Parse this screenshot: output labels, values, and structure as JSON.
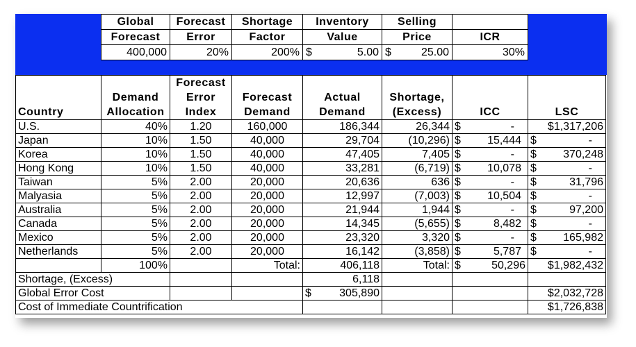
{
  "params": {
    "headers": [
      [
        "Global",
        "Forecast"
      ],
      [
        "Forecast",
        "Error"
      ],
      [
        "Shortage",
        "Factor"
      ],
      [
        "Inventory",
        "Value"
      ],
      [
        "Selling",
        "Price"
      ],
      [
        "",
        "ICR"
      ]
    ],
    "values": {
      "global_forecast": "400,000",
      "forecast_error": "20%",
      "shortage_factor": "200%",
      "inventory_value_sym": "$",
      "inventory_value": "5.00",
      "selling_price_sym": "$",
      "selling_price": "25.00",
      "icr": "30%"
    }
  },
  "columns": [
    [
      "",
      "",
      "Country"
    ],
    [
      "",
      "Demand",
      "Allocation"
    ],
    [
      "Forecast",
      "Error",
      "Index"
    ],
    [
      "",
      "Forecast",
      "Demand"
    ],
    [
      "",
      "Actual",
      "Demand"
    ],
    [
      "",
      "Shortage,",
      "(Excess)"
    ],
    [
      "",
      "",
      "ICC"
    ],
    [
      "",
      "",
      "LSC"
    ]
  ],
  "rows": [
    {
      "country": "U.S.",
      "alloc": "40%",
      "index": "1.20",
      "forecast": "160,000",
      "actual": "186,344",
      "shortage": "26,344",
      "icc": "-",
      "lsc": "$1,317,206",
      "lsc_split": false
    },
    {
      "country": "Japan",
      "alloc": "10%",
      "index": "1.50",
      "forecast": "40,000",
      "actual": "29,704",
      "shortage": "(10,296)",
      "icc": "15,444",
      "lsc": "-",
      "lsc_split": true
    },
    {
      "country": "Korea",
      "alloc": "10%",
      "index": "1.50",
      "forecast": "40,000",
      "actual": "47,405",
      "shortage": "7,405",
      "icc": "-",
      "lsc": "370,248",
      "lsc_split": true
    },
    {
      "country": "Hong Kong",
      "alloc": "10%",
      "index": "1.50",
      "forecast": "40,000",
      "actual": "33,281",
      "shortage": "(6,719)",
      "icc": "10,078",
      "lsc": "-",
      "lsc_split": true
    },
    {
      "country": "Taiwan",
      "alloc": "5%",
      "index": "2.00",
      "forecast": "20,000",
      "actual": "20,636",
      "shortage": "636",
      "icc": "-",
      "lsc": "31,796",
      "lsc_split": true
    },
    {
      "country": "Malyasia",
      "alloc": "5%",
      "index": "2.00",
      "forecast": "20,000",
      "actual": "12,997",
      "shortage": "(7,003)",
      "icc": "10,504",
      "lsc": "-",
      "lsc_split": true
    },
    {
      "country": "Australia",
      "alloc": "5%",
      "index": "2.00",
      "forecast": "20,000",
      "actual": "21,944",
      "shortage": "1,944",
      "icc": "-",
      "lsc": "97,200",
      "lsc_split": true
    },
    {
      "country": "Canada",
      "alloc": "5%",
      "index": "2.00",
      "forecast": "20,000",
      "actual": "14,345",
      "shortage": "(5,655)",
      "icc": "8,482",
      "lsc": "-",
      "lsc_split": true
    },
    {
      "country": "Mexico",
      "alloc": "5%",
      "index": "2.00",
      "forecast": "20,000",
      "actual": "23,320",
      "shortage": "3,320",
      "icc": "-",
      "lsc": "165,982",
      "lsc_split": true
    },
    {
      "country": "Netherlands",
      "alloc": "5%",
      "index": "2.00",
      "forecast": "20,000",
      "actual": "16,142",
      "shortage": "(3,858)",
      "icc": "5,787",
      "lsc": "-",
      "lsc_split": true
    }
  ],
  "currency": "$",
  "totals": {
    "alloc": "100%",
    "label": "Total:",
    "actual": "406,118",
    "label2": "Total:",
    "icc": "50,296",
    "lsc": "$1,982,432"
  },
  "summary": {
    "shortage_label": "Shortage, (Excess)",
    "shortage_value": "6,118",
    "global_error_label": "Global Error Cost",
    "global_error_value": "305,890",
    "global_error_lsc": "$2,032,728",
    "countrification_label": "Cost of Immediate Countrification",
    "countrification_value": "$1,726,838"
  },
  "colors": {
    "band": "#0b2ff0",
    "border": "#000000",
    "background": "#ffffff"
  }
}
